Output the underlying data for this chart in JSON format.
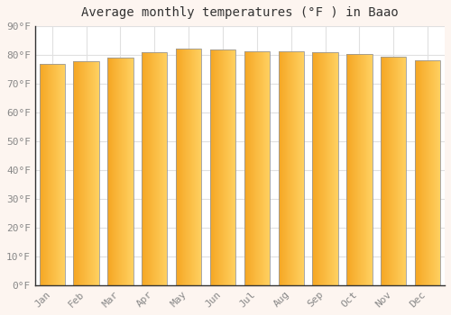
{
  "months": [
    "Jan",
    "Feb",
    "Mar",
    "Apr",
    "May",
    "Jun",
    "Jul",
    "Aug",
    "Sep",
    "Oct",
    "Nov",
    "Dec"
  ],
  "values": [
    77.0,
    77.7,
    79.2,
    81.0,
    82.2,
    82.0,
    81.3,
    81.3,
    81.0,
    80.4,
    79.3,
    78.1
  ],
  "title": "Average monthly temperatures (°F ) in Baao",
  "ylim": [
    0,
    90
  ],
  "yticks": [
    0,
    10,
    20,
    30,
    40,
    50,
    60,
    70,
    80,
    90
  ],
  "ytick_labels": [
    "0°F",
    "10°F",
    "20°F",
    "30°F",
    "40°F",
    "50°F",
    "60°F",
    "70°F",
    "80°F",
    "90°F"
  ],
  "bar_color_left": "#F5A623",
  "bar_color_right": "#FFD060",
  "bar_color_mid": "#FFBB33",
  "background_color": "#FFFFFF",
  "outer_background": "#FDF5F0",
  "grid_color": "#E0E0E0",
  "title_fontsize": 10,
  "tick_fontsize": 8,
  "bar_edge_color": "#999999",
  "bar_width": 0.75
}
